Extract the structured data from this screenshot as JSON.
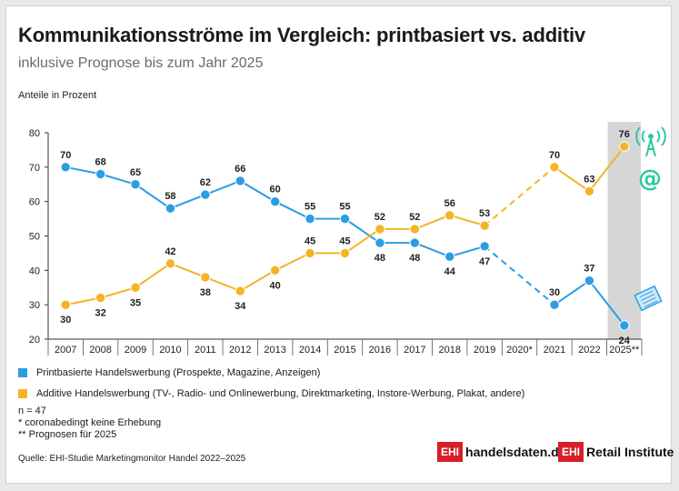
{
  "header": {
    "title": "Kommunikationsströme im Vergleich: printbasiert vs. additiv",
    "subtitle": "inklusive Prognose bis zum Jahr 2025",
    "unit_label": "Anteile in Prozent"
  },
  "legend": {
    "print_label": "Printbasierte Handelswerbung (Prospekte, Magazine, Anzeigen)",
    "additive_label": "Additive Handelswerbung (TV-, Radio- und Onlinewerbung, Direktmarketing, Instore-Werbung, Plakat, andere)"
  },
  "notes": {
    "n": "n = 47",
    "note1": "*   coronabedingt keine Erhebung",
    "note2": "** Prognosen für 2025"
  },
  "source": "Quelle: EHI-Studie Marketingmonitor Handel 2022–2025",
  "logos": [
    {
      "box": "EHI",
      "text": "handelsdaten.de"
    },
    {
      "box": "EHI",
      "text": "Retail Institute"
    }
  ],
  "colors": {
    "print": "#2a9de3",
    "additive": "#f5b326",
    "forecast_band": "#d6d6d6",
    "icon": "#2ec8a0",
    "brand": "#d81e2a"
  },
  "icons": [
    "broadcast-tower-icon",
    "at-sign-icon",
    "newspaper-icon"
  ],
  "chart_data": {
    "type": "line",
    "categories": [
      "2007",
      "2008",
      "2009",
      "2010",
      "2011",
      "2012",
      "2013",
      "2014",
      "2015",
      "2016",
      "2017",
      "2018",
      "2019",
      "2020*",
      "2021",
      "2022",
      "2025**"
    ],
    "series": [
      {
        "name": "Printbasierte Handelswerbung (Prospekte, Magazine, Anzeigen)",
        "color": "#2a9de3",
        "values": [
          70,
          68,
          65,
          58,
          62,
          66,
          60,
          55,
          55,
          48,
          48,
          44,
          47,
          null,
          30,
          37,
          24
        ]
      },
      {
        "name": "Additive Handelswerbung (TV-, Radio- und Onlinewerbung, Direktmarketing, Instore-Werbung, Plakat, andere)",
        "color": "#f5b326",
        "values": [
          30,
          32,
          35,
          42,
          38,
          34,
          40,
          45,
          45,
          52,
          52,
          56,
          53,
          null,
          70,
          63,
          76
        ]
      }
    ],
    "ylim": [
      20,
      80
    ],
    "yticks": [
      20,
      30,
      40,
      50,
      60,
      70,
      80
    ],
    "ylabel": "Anteile in Prozent",
    "dashed_gap": "2020*",
    "highlight_category": "2025**",
    "grid": false
  }
}
